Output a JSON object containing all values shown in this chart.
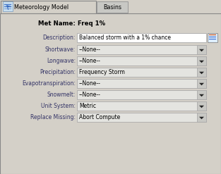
{
  "bg_color": "#d4d0c8",
  "tab_active_text": "Meteorology Model",
  "tab_inactive_text": "Basins",
  "met_name_label": "Met Name:",
  "met_name_value": "Freq 1%",
  "description_label": "Description:",
  "description_value": "Balanced storm with a 1% chance",
  "fields": [
    {
      "label": "Shortwave:",
      "value": "--None--"
    },
    {
      "label": "Longwave:",
      "value": "--None--"
    },
    {
      "label": "Precipitation:",
      "value": "Frequency Storm"
    },
    {
      "label": "Evapotranspiration:",
      "value": "--None--"
    },
    {
      "label": "Snowmelt:",
      "value": "--None--"
    },
    {
      "label": "Unit System:",
      "value": "Metric"
    },
    {
      "label": "Replace Missing:",
      "value": "Abort Compute"
    }
  ],
  "dropdown_bg": "#e4e4e0",
  "dropdown_border": "#aaaaaa",
  "text_field_bg": "#ffffff",
  "label_color": "#333366",
  "value_color": "#000000",
  "title_fontsize": 6.2,
  "label_fontsize": 5.5,
  "value_fontsize": 5.5,
  "tab_fontsize": 5.8
}
